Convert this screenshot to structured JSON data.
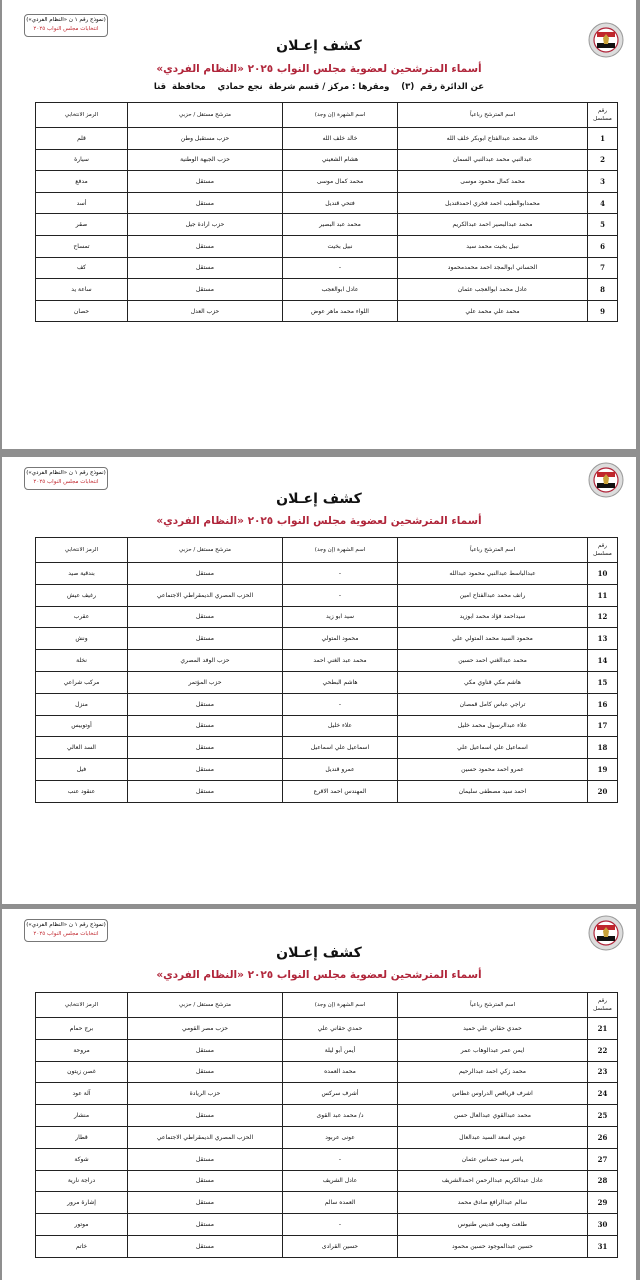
{
  "header": {
    "badge_line1": "(نموذج رقم ١ ن «النظام الفردي»)",
    "badge_line2": "انتخابات مجلس النواب ٢٠٢٥",
    "title": "كشف إعـلان",
    "subtitle": "أسماء المترشحين لعضوية مجلس النواب ٢٠٢٥ «النظام الفردي»",
    "district": "عن الدائرة رقم  (٣)    ومقرها : مركز / قسم شرطة  نجع حمادي    محافظة  قنا",
    "logo_icon": "egypt-eagle-emblem",
    "accent_color": "#b0253a"
  },
  "columns": [
    "رقم مسلسل",
    "اسم المترشح رباعياً",
    "اسم الشهرة (إن وجد)",
    "مترشح مستقل / حزبي",
    "الرمز الانتخابي"
  ],
  "pages": [
    {
      "rows": [
        [
          "1",
          "خالد محمد عبدالفتاح ابوبكر خلف الله",
          "خالد خلف الله",
          "حزب مستقبل وطن",
          "قلم"
        ],
        [
          "2",
          "عبدالنبي محمد عبدالنبي السمان",
          "هشام الشعيني",
          "حزب الجبهة الوطنية",
          "سيارة"
        ],
        [
          "3",
          "محمد كمال محمود موسى",
          "محمد كمال موسى",
          "مستقل",
          "مدفع"
        ],
        [
          "4",
          "محمدابوالطيب احمد فخري احمدقنديل",
          "فتحي قنديل",
          "مستقل",
          "أسد"
        ],
        [
          "5",
          "محمد عبدالبصير احمد عبدالكريم",
          "محمد عبد البصير",
          "حزب ارادة جيل",
          "صقر"
        ],
        [
          "6",
          "نبيل بخيت محمد سيد",
          "نبيل بخيت",
          "مستقل",
          "تمساح"
        ],
        [
          "7",
          "الحساني ابوالمجد احمد محمدمحمود",
          "-",
          "مستقل",
          "كف"
        ],
        [
          "8",
          "عادل محمد ابوالعجب عثمان",
          "عادل ابوالعجب",
          "مستقل",
          "ساعة يد"
        ],
        [
          "9",
          "محمد علي محمد علي",
          "اللواء محمد ماهر عوض",
          "حزب العدل",
          "حصان"
        ]
      ]
    },
    {
      "rows": [
        [
          "10",
          "عبدالباسط عبدالنبي محمود عبدالله",
          "-",
          "مستقل",
          "بندقية صيد"
        ],
        [
          "11",
          "رانف محمد عبدالفتاح امين",
          "-",
          "الحزب المصري الديمقراطي الاجتماعي",
          "رغيف عيش"
        ],
        [
          "12",
          "سيداحمد فؤاد محمد ابوزيد",
          "سيد ابو زيد",
          "مستقل",
          "عقرب"
        ],
        [
          "13",
          "محمود السيد محمد المتولي علي",
          "محمود المتولي",
          "مستقل",
          "ونش"
        ],
        [
          "14",
          "محمد عبدالغني احمد حسين",
          "محمد عبد الغني احمد",
          "حزب الوفد المصري",
          "نخلة"
        ],
        [
          "15",
          "هاشم مكي قناوي مكي",
          "هاشم البطحي",
          "حزب المؤتمر",
          "مركب شراعي"
        ],
        [
          "16",
          "تراجي عباس كامل قمصان",
          "-",
          "مستقل",
          "منزل"
        ],
        [
          "17",
          "علاء عبدالرسول محمد خليل",
          "علاء خليل",
          "مستقل",
          "أوتوبيس"
        ],
        [
          "18",
          "اسماعيل علي اسماعيل علي",
          "اسماعيل علي اسماعيل",
          "مستقل",
          "السد العالي"
        ],
        [
          "19",
          "عمرو احمد محمود حسين",
          "عمرو قنديل",
          "مستقل",
          "فيل"
        ],
        [
          "20",
          "احمد سيد مصطفى سليمان",
          "المهندس احمد الاقرع",
          "مستقل",
          "عنقود عنب"
        ]
      ]
    },
    {
      "rows": [
        [
          "21",
          "حمدي حقاني علي حميد",
          "حمدي حقاني علي",
          "حزب مصر القومي",
          "برج حمام"
        ],
        [
          "22",
          "ايمن عمر عبدالوهاب عمر",
          "أيمن أبو ليلة",
          "مستقل",
          "مروحة"
        ],
        [
          "23",
          "محمد زكي احمد عبدالرحيم",
          "محمد العمده",
          "مستقل",
          "غصن زيتون"
        ],
        [
          "24",
          "اشرف قرياقص الدراوس غطاس",
          "أشرف سركس",
          "حزب الريادة",
          "آلة عود"
        ],
        [
          "25",
          "محمد عبدالقوي عبدالعال حسن",
          "د/ محمد عبد القوى",
          "مستقل",
          "منشار"
        ],
        [
          "26",
          "عوني اسعد السيد عبدالعال",
          "عونى عربود",
          "الحزب المصري الديمقراطي الاجتماعي",
          "قطار"
        ],
        [
          "27",
          "ياسر سيد حسانين عثمان",
          "-",
          "مستقل",
          "شوكة"
        ],
        [
          "28",
          "عادل عبدالكريم عبدالرحمن احمدالشريف",
          "عادل الشريف",
          "مستقل",
          "دراجة نارية"
        ],
        [
          "29",
          "سالم عبدالرافع صادق محمد",
          "العمده سالم",
          "مستقل",
          "إشارة مرور"
        ],
        [
          "30",
          "طلعت وهيب قديس طنيوس",
          "-",
          "مستقل",
          "موتور"
        ],
        [
          "31",
          "حسين عبدالموجود حسين محمود",
          "حسين القرادى",
          "مستقل",
          "خاتم"
        ]
      ]
    }
  ]
}
